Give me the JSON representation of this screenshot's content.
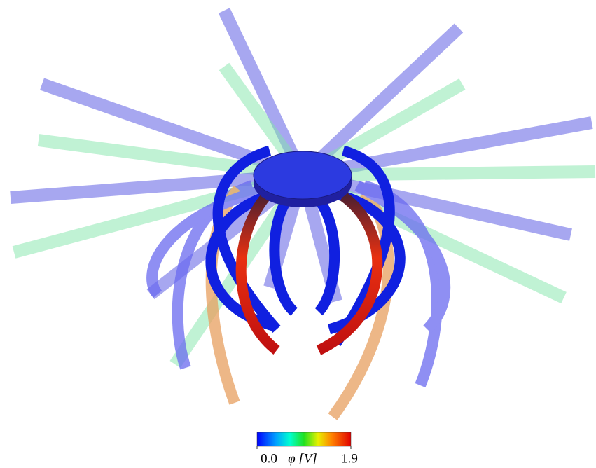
{
  "colorbar": {
    "label": "φ [V]",
    "ticks": [
      {
        "value": 0,
        "label": "0.0"
      },
      {
        "value": 1.9,
        "label": "1.9"
      }
    ]
  }
}
